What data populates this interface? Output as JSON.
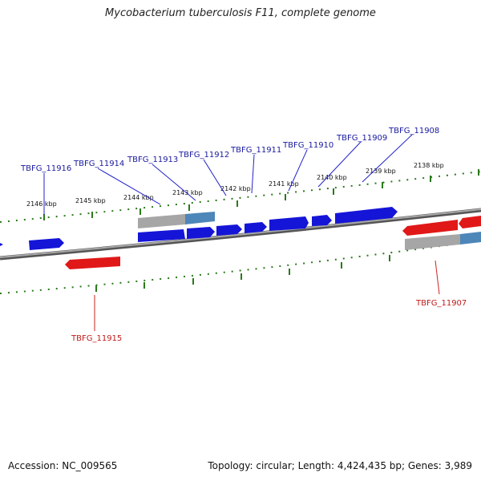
{
  "title": "Mycobacterium tuberculosis F11, complete genome",
  "footer": {
    "accession": "Accession: NC_009565",
    "summary": "Topology: circular; Length: 4,424,435 bp; Genes: 3,989"
  },
  "colors": {
    "forward_gene": "#1515d8",
    "reverse_gene": "#e01818",
    "backbone": "#7a7a7a",
    "tick": "#2a7a1a",
    "gray_feature": "#a6a6a6",
    "light_blue_feature": "#4d86b8"
  },
  "scale_labels": [
    "2146 kbp",
    "2145 kbp",
    "2144 kbp",
    "2143 kbp",
    "2142 kbp",
    "2141 kbp",
    "2140 kbp",
    "2139 kbp",
    "2138 kbp"
  ],
  "gene_labels": {
    "top": [
      "TBFG_11916",
      "TBFG_11914",
      "TBFG_11913",
      "TBFG_11912",
      "TBFG_11911",
      "TBFG_11910",
      "TBFG_11909",
      "TBFG_11908"
    ],
    "bottom": [
      "TBFG_11915",
      "TBFG_11907"
    ]
  }
}
